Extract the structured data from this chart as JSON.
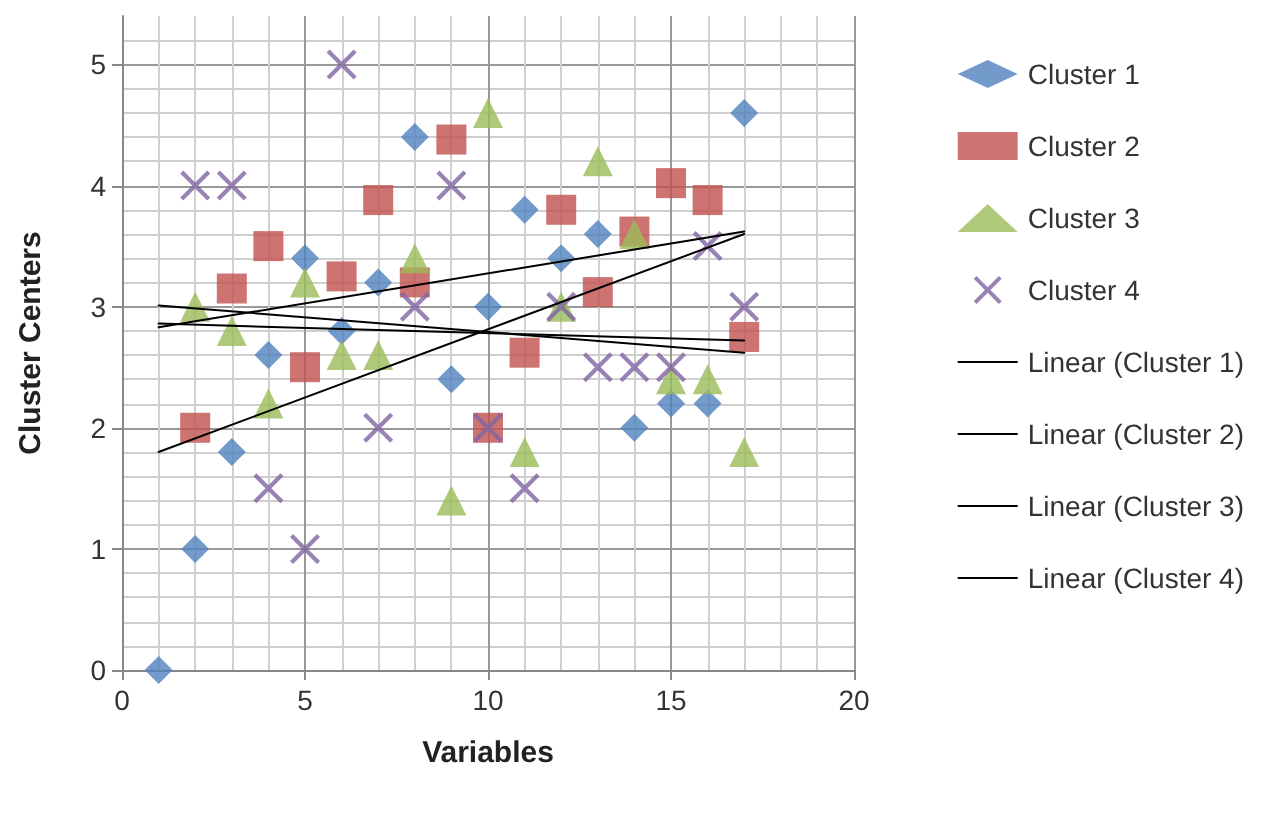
{
  "chart_data": {
    "type": "scatter",
    "xlabel": "Variables",
    "ylabel": "Cluster Centers",
    "xlim": [
      0,
      20
    ],
    "xticks": [
      0,
      5,
      10,
      15,
      20
    ],
    "ylim": [
      0,
      5.4
    ],
    "yticks": [
      0,
      1,
      2,
      3,
      4,
      5
    ],
    "grid": true,
    "legend": "right",
    "series": [
      {
        "name": "Cluster 1",
        "color": "#4f81bd",
        "marker": "diamond",
        "x": [
          1,
          2,
          3,
          4,
          5,
          6,
          7,
          8,
          9,
          10,
          11,
          12,
          13,
          14,
          15,
          16,
          17
        ],
        "values": [
          0,
          1,
          1.8,
          2.6,
          3.4,
          2.8,
          3.2,
          4.4,
          2.4,
          3.0,
          3.8,
          3.4,
          3.6,
          2.0,
          2.2,
          2.2,
          4.6
        ]
      },
      {
        "name": "Cluster 2",
        "color": "#c0504d",
        "marker": "square",
        "x": [
          2,
          3,
          4,
          5,
          6,
          7,
          8,
          9,
          10,
          11,
          12,
          13,
          14,
          15,
          16,
          17
        ],
        "values": [
          2.0,
          3.15,
          3.5,
          2.5,
          3.25,
          3.88,
          3.2,
          4.38,
          2.0,
          2.62,
          3.8,
          3.12,
          3.62,
          4.02,
          3.88,
          2.75
        ]
      },
      {
        "name": "Cluster 3",
        "color": "#9bbb59",
        "marker": "triangle",
        "x": [
          2,
          3,
          4,
          5,
          6,
          7,
          8,
          9,
          10,
          11,
          12,
          13,
          14,
          15,
          16,
          17
        ],
        "values": [
          3.0,
          2.8,
          2.2,
          3.2,
          2.6,
          2.6,
          3.4,
          1.4,
          4.6,
          1.8,
          3.0,
          4.2,
          3.6,
          2.4,
          2.4,
          1.8
        ]
      },
      {
        "name": "Cluster 4",
        "color": "#8064a2",
        "marker": "cross",
        "x": [
          2,
          3,
          4,
          5,
          6,
          7,
          8,
          9,
          10,
          11,
          12,
          13,
          14,
          15,
          16,
          17
        ],
        "values": [
          4.0,
          4.0,
          1.5,
          1.0,
          5.0,
          2.0,
          3.0,
          4.0,
          2.0,
          1.5,
          3.0,
          2.5,
          2.5,
          2.5,
          3.5,
          3.0
        ]
      },
      {
        "name": "Linear (Cluster 1)",
        "type": "line",
        "color": "#000000",
        "marker": "none",
        "line_style": "solid",
        "x": [
          1,
          17
        ],
        "values": [
          1.8,
          3.6
        ]
      },
      {
        "name": "Linear (Cluster 2)",
        "type": "line",
        "color": "#000000",
        "marker": "none",
        "line_style": "solid",
        "x": [
          1,
          17
        ],
        "values": [
          2.83,
          3.62
        ]
      },
      {
        "name": "Linear (Cluster 3)",
        "type": "line",
        "color": "#000000",
        "marker": "none",
        "line_style": "solid",
        "x": [
          1,
          17
        ],
        "values": [
          3.01,
          2.62
        ]
      },
      {
        "name": "Linear (Cluster 4)",
        "type": "line",
        "color": "#000000",
        "marker": "none",
        "line_style": "solid",
        "x": [
          1,
          17
        ],
        "values": [
          2.86,
          2.72
        ]
      }
    ]
  }
}
